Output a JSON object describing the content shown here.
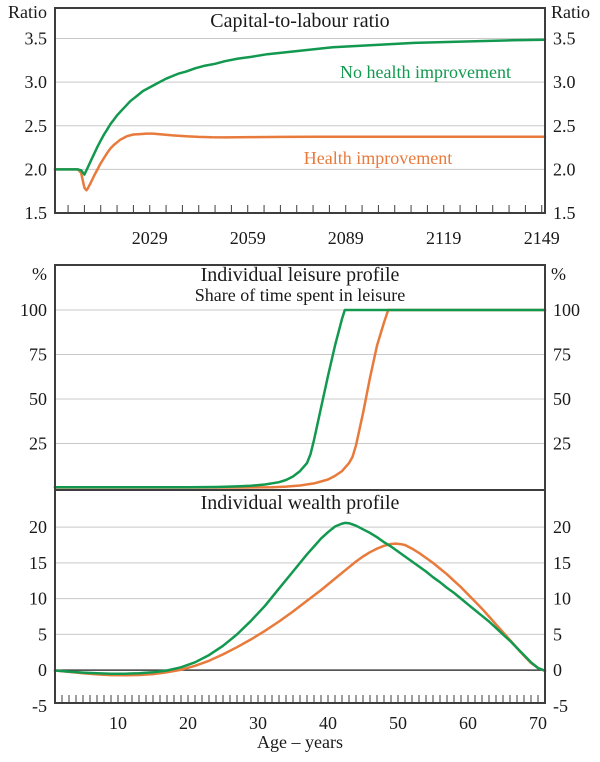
{
  "figure": {
    "background": "#ffffff",
    "text_color": "#1a1a1a",
    "grid_color": "#c9c9c9",
    "border_color": "#3d3d3d",
    "accent_green": "#13994f",
    "accent_orange": "#e87a3c"
  },
  "chart_data": [
    {
      "type": "line",
      "title": "Capital-to-labour ratio",
      "left_unit": "Ratio",
      "right_unit": "Ratio",
      "x_domain": [
        2000,
        2150
      ],
      "y_domain": [
        1.5,
        3.85
      ],
      "grid": true,
      "legend_position": "inline-annotations",
      "y_gridlines": [
        2.0,
        2.5,
        3.0,
        3.5
      ],
      "y_ticks": [
        {
          "v": 3.5,
          "label": "3.5"
        },
        {
          "v": 3.0,
          "label": "3.0"
        },
        {
          "v": 2.5,
          "label": "2.5"
        },
        {
          "v": 2.0,
          "label": "2.0"
        },
        {
          "v": 1.5,
          "label": "1.5"
        }
      ],
      "x_ticks": [
        {
          "v": 2029,
          "label": "2029"
        },
        {
          "v": 2059,
          "label": "2059"
        },
        {
          "v": 2089,
          "label": "2089"
        },
        {
          "v": 2119,
          "label": "2119"
        },
        {
          "v": 2149,
          "label": "2149"
        }
      ],
      "x_minor": {
        "from": 2004,
        "to": 2149,
        "step": 5
      },
      "series": [
        {
          "name": "No health improvement",
          "color": "#13994f",
          "points": [
            [
              2000,
              2.0
            ],
            [
              2004,
              2.0
            ],
            [
              2007,
              2.0
            ],
            [
              2008,
              1.99
            ],
            [
              2009,
              1.94
            ],
            [
              2010,
              2.02
            ],
            [
              2011,
              2.1
            ],
            [
              2012,
              2.18
            ],
            [
              2013,
              2.26
            ],
            [
              2014,
              2.33
            ],
            [
              2015,
              2.4
            ],
            [
              2016,
              2.46
            ],
            [
              2017,
              2.52
            ],
            [
              2018,
              2.57
            ],
            [
              2019,
              2.62
            ],
            [
              2020,
              2.66
            ],
            [
              2021,
              2.7
            ],
            [
              2022,
              2.74
            ],
            [
              2023,
              2.78
            ],
            [
              2024,
              2.81
            ],
            [
              2025,
              2.84
            ],
            [
              2026,
              2.87
            ],
            [
              2027,
              2.9
            ],
            [
              2028,
              2.92
            ],
            [
              2029,
              2.94
            ],
            [
              2030,
              2.96
            ],
            [
              2032,
              3.0
            ],
            [
              2034,
              3.04
            ],
            [
              2036,
              3.07
            ],
            [
              2038,
              3.1
            ],
            [
              2040,
              3.12
            ],
            [
              2043,
              3.16
            ],
            [
              2046,
              3.19
            ],
            [
              2049,
              3.21
            ],
            [
              2052,
              3.24
            ],
            [
              2056,
              3.27
            ],
            [
              2060,
              3.29
            ],
            [
              2065,
              3.32
            ],
            [
              2070,
              3.34
            ],
            [
              2075,
              3.36
            ],
            [
              2080,
              3.38
            ],
            [
              2085,
              3.4
            ],
            [
              2090,
              3.41
            ],
            [
              2095,
              3.42
            ],
            [
              2100,
              3.43
            ],
            [
              2110,
              3.45
            ],
            [
              2120,
              3.46
            ],
            [
              2130,
              3.47
            ],
            [
              2140,
              3.48
            ],
            [
              2150,
              3.485
            ]
          ]
        },
        {
          "name": "Health improvement",
          "color": "#e87a3c",
          "points": [
            [
              2000,
              2.0
            ],
            [
              2004,
              2.0
            ],
            [
              2007,
              2.0
            ],
            [
              2008,
              1.96
            ],
            [
              2009,
              1.79
            ],
            [
              2009.6,
              1.76
            ],
            [
              2010,
              1.78
            ],
            [
              2011,
              1.85
            ],
            [
              2012,
              1.93
            ],
            [
              2013,
              2.0
            ],
            [
              2014,
              2.07
            ],
            [
              2015,
              2.13
            ],
            [
              2016,
              2.19
            ],
            [
              2017,
              2.24
            ],
            [
              2018,
              2.28
            ],
            [
              2019,
              2.31
            ],
            [
              2020,
              2.34
            ],
            [
              2021,
              2.36
            ],
            [
              2022,
              2.38
            ],
            [
              2024,
              2.4
            ],
            [
              2026,
              2.405
            ],
            [
              2028,
              2.41
            ],
            [
              2030,
              2.41
            ],
            [
              2033,
              2.4
            ],
            [
              2036,
              2.39
            ],
            [
              2040,
              2.38
            ],
            [
              2044,
              2.372
            ],
            [
              2048,
              2.368
            ],
            [
              2052,
              2.367
            ],
            [
              2056,
              2.368
            ],
            [
              2060,
              2.37
            ],
            [
              2070,
              2.372
            ],
            [
              2080,
              2.373
            ],
            [
              2090,
              2.374
            ],
            [
              2100,
              2.374
            ],
            [
              2110,
              2.375
            ],
            [
              2120,
              2.375
            ],
            [
              2130,
              2.375
            ],
            [
              2140,
              2.375
            ],
            [
              2150,
              2.375
            ]
          ]
        }
      ]
    },
    {
      "type": "line",
      "title": "Individual leisure profile",
      "subtitle": "Share of time spent in leisure",
      "left_unit": "%",
      "right_unit": "%",
      "x_domain": [
        1,
        71
      ],
      "y_domain": [
        -1.1,
        125.3
      ],
      "grid": true,
      "y_gridlines": [
        25,
        50,
        75,
        100
      ],
      "y_ticks": [
        {
          "v": 100,
          "label": "100"
        },
        {
          "v": 75,
          "label": "75"
        },
        {
          "v": 50,
          "label": "50"
        },
        {
          "v": 25,
          "label": "25"
        }
      ],
      "x_ticks": [],
      "series": [
        {
          "name": "No health improvement",
          "color": "#13994f",
          "points": [
            [
              1,
              0.5
            ],
            [
              20,
              0.5
            ],
            [
              24,
              0.6
            ],
            [
              27,
              0.9
            ],
            [
              29,
              1.3
            ],
            [
              31,
              2
            ],
            [
              33,
              3.3
            ],
            [
              34,
              4.5
            ],
            [
              35,
              6.5
            ],
            [
              36,
              9.5
            ],
            [
              37,
              14
            ],
            [
              37.5,
              19
            ],
            [
              38,
              27
            ],
            [
              39,
              45
            ],
            [
              40,
              63
            ],
            [
              41,
              80
            ],
            [
              42,
              95
            ],
            [
              42.4,
              100
            ],
            [
              45,
              100
            ],
            [
              60,
              100
            ],
            [
              71,
              100
            ]
          ]
        },
        {
          "name": "Health improvement",
          "color": "#e87a3c",
          "points": [
            [
              1,
              0.3
            ],
            [
              28,
              0.3
            ],
            [
              32,
              0.5
            ],
            [
              34,
              0.8
            ],
            [
              36,
              1.4
            ],
            [
              38,
              2.6
            ],
            [
              40,
              4.8
            ],
            [
              41,
              6.8
            ],
            [
              42,
              9.5
            ],
            [
              43,
              14
            ],
            [
              43.5,
              17.5
            ],
            [
              44,
              24
            ],
            [
              45,
              42
            ],
            [
              46,
              62
            ],
            [
              47,
              80
            ],
            [
              48,
              93
            ],
            [
              48.6,
              100
            ],
            [
              51,
              100
            ],
            [
              60,
              100
            ],
            [
              71,
              100
            ]
          ]
        }
      ]
    },
    {
      "type": "line",
      "title": "Individual wealth profile",
      "xlabel": "Age – years",
      "x_domain": [
        1,
        71
      ],
      "y_domain": [
        -4.6,
        25.2
      ],
      "grid": true,
      "zero_line": 0,
      "y_gridlines": [
        5,
        10,
        15,
        20
      ],
      "y_ticks": [
        {
          "v": 20,
          "label": "20"
        },
        {
          "v": 15,
          "label": "15"
        },
        {
          "v": 10,
          "label": "10"
        },
        {
          "v": 5,
          "label": "5"
        },
        {
          "v": 0,
          "label": "0"
        },
        {
          "v": -5,
          "label": "-5"
        }
      ],
      "x_ticks": [
        {
          "v": 10,
          "label": "10"
        },
        {
          "v": 20,
          "label": "20"
        },
        {
          "v": 30,
          "label": "30"
        },
        {
          "v": 40,
          "label": "40"
        },
        {
          "v": 50,
          "label": "50"
        },
        {
          "v": 60,
          "label": "60"
        },
        {
          "v": 70,
          "label": "70"
        }
      ],
      "x_minor": {
        "from": 2,
        "to": 71,
        "step": 1
      },
      "series": [
        {
          "name": "No health improvement",
          "color": "#13994f",
          "points": [
            [
              1,
              -0.05
            ],
            [
              3,
              -0.2
            ],
            [
              5,
              -0.35
            ],
            [
              7,
              -0.45
            ],
            [
              9,
              -0.5
            ],
            [
              11,
              -0.5
            ],
            [
              13,
              -0.45
            ],
            [
              15,
              -0.3
            ],
            [
              17,
              -0.05
            ],
            [
              19,
              0.4
            ],
            [
              21,
              1.1
            ],
            [
              23,
              2.1
            ],
            [
              25,
              3.4
            ],
            [
              27,
              5.0
            ],
            [
              29,
              6.9
            ],
            [
              31,
              9.0
            ],
            [
              33,
              11.4
            ],
            [
              35,
              13.8
            ],
            [
              37,
              16.2
            ],
            [
              38,
              17.3
            ],
            [
              39,
              18.4
            ],
            [
              40,
              19.3
            ],
            [
              41,
              20.1
            ],
            [
              42,
              20.5
            ],
            [
              42.5,
              20.6
            ],
            [
              43,
              20.55
            ],
            [
              44,
              20.2
            ],
            [
              45,
              19.7
            ],
            [
              46,
              19.2
            ],
            [
              47,
              18.6
            ],
            [
              48,
              17.9
            ],
            [
              49,
              17.3
            ],
            [
              50,
              16.6
            ],
            [
              51,
              15.9
            ],
            [
              52,
              15.2
            ],
            [
              53,
              14.5
            ],
            [
              54,
              13.8
            ],
            [
              55,
              13.0
            ],
            [
              56,
              12.3
            ],
            [
              57,
              11.5
            ],
            [
              58,
              10.8
            ],
            [
              59,
              10.0
            ],
            [
              60,
              9.2
            ],
            [
              61,
              8.4
            ],
            [
              62,
              7.6
            ],
            [
              63,
              6.8
            ],
            [
              64,
              5.9
            ],
            [
              65,
              5.0
            ],
            [
              66,
              4.1
            ],
            [
              67,
              3.1
            ],
            [
              68,
              2.1
            ],
            [
              69,
              1.1
            ],
            [
              70,
              0.3
            ],
            [
              71,
              -0.1
            ]
          ]
        },
        {
          "name": "Health improvement",
          "color": "#e87a3c",
          "points": [
            [
              1,
              -0.05
            ],
            [
              3,
              -0.25
            ],
            [
              5,
              -0.45
            ],
            [
              7,
              -0.6
            ],
            [
              9,
              -0.7
            ],
            [
              11,
              -0.72
            ],
            [
              13,
              -0.68
            ],
            [
              15,
              -0.55
            ],
            [
              17,
              -0.3
            ],
            [
              19,
              0.05
            ],
            [
              21,
              0.6
            ],
            [
              23,
              1.3
            ],
            [
              25,
              2.2
            ],
            [
              27,
              3.2
            ],
            [
              29,
              4.3
            ],
            [
              31,
              5.5
            ],
            [
              33,
              6.8
            ],
            [
              35,
              8.2
            ],
            [
              37,
              9.7
            ],
            [
              39,
              11.2
            ],
            [
              41,
              12.8
            ],
            [
              43,
              14.4
            ],
            [
              44,
              15.2
            ],
            [
              45,
              15.9
            ],
            [
              46,
              16.5
            ],
            [
              47,
              17.0
            ],
            [
              48,
              17.4
            ],
            [
              49,
              17.65
            ],
            [
              49.7,
              17.7
            ],
            [
              50.5,
              17.6
            ],
            [
              51,
              17.5
            ],
            [
              52,
              17.0
            ],
            [
              53,
              16.4
            ],
            [
              54,
              15.7
            ],
            [
              55,
              15.0
            ],
            [
              56,
              14.2
            ],
            [
              57,
              13.4
            ],
            [
              58,
              12.5
            ],
            [
              59,
              11.6
            ],
            [
              60,
              10.6
            ],
            [
              61,
              9.6
            ],
            [
              62,
              8.6
            ],
            [
              63,
              7.5
            ],
            [
              64,
              6.4
            ],
            [
              65,
              5.3
            ],
            [
              66,
              4.2
            ],
            [
              67,
              3.1
            ],
            [
              68,
              2.0
            ],
            [
              69,
              1.0
            ],
            [
              70,
              0.3
            ],
            [
              71,
              -0.1
            ]
          ]
        }
      ]
    }
  ]
}
